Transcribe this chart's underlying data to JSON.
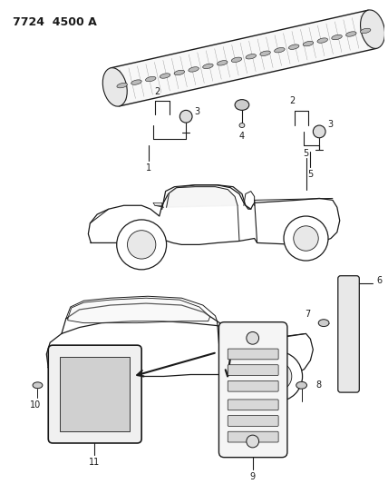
{
  "title": "7724  4500 A",
  "background_color": "#ffffff",
  "line_color": "#1a1a1a",
  "fig_width": 4.28,
  "fig_height": 5.33,
  "dpi": 100
}
